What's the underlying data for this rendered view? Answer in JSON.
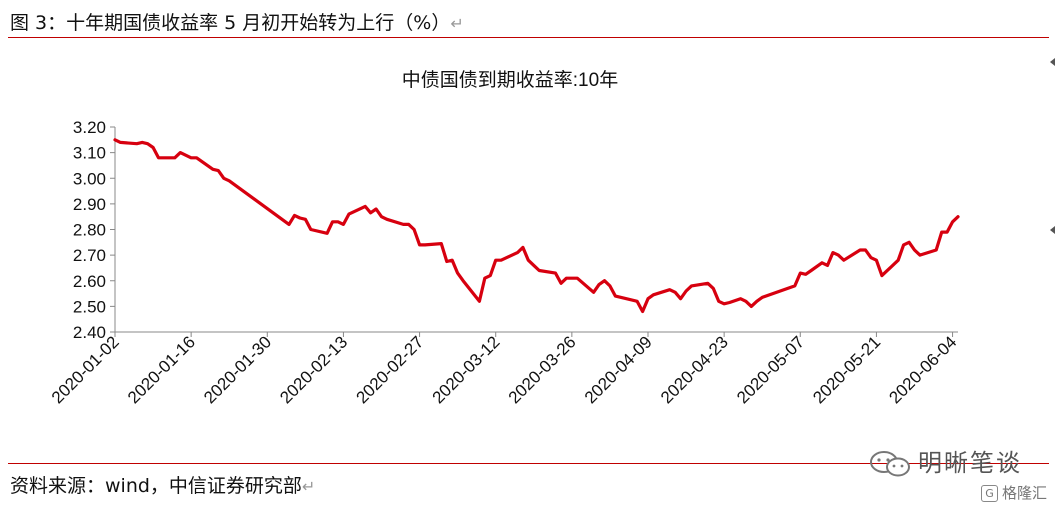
{
  "figure_title": "图 3：十年期国债收益率 5 月初开始转为上行（%）",
  "source": "资料来源：wind，中信证券研究部",
  "watermark": "明晰笔谈",
  "brand": "格隆汇",
  "colors": {
    "series": "#d7000f",
    "rule": "#c00000",
    "axis": "#888888"
  },
  "chart_data": {
    "type": "line",
    "title": "中债国债到期收益率:10年",
    "xlabel": "",
    "ylabel": "",
    "ylim": [
      2.4,
      3.2
    ],
    "yticks": [
      "2.40",
      "2.50",
      "2.60",
      "2.70",
      "2.80",
      "2.90",
      "3.00",
      "3.10",
      "3.20"
    ],
    "xlim": [
      "2020-01-02",
      "2020-06-05"
    ],
    "xticks": [
      "2020-01-02",
      "2020-01-16",
      "2020-01-30",
      "2020-02-13",
      "2020-02-27",
      "2020-03-12",
      "2020-03-26",
      "2020-04-09",
      "2020-04-23",
      "2020-05-07",
      "2020-05-21",
      "2020-06-04"
    ],
    "grid": false,
    "legend": "none",
    "series": [
      {
        "x": [
          "2020-01-02",
          "2020-01-03",
          "2020-01-06",
          "2020-01-07",
          "2020-01-08",
          "2020-01-09",
          "2020-01-10",
          "2020-01-13",
          "2020-01-14",
          "2020-01-15",
          "2020-01-16",
          "2020-01-17",
          "2020-01-20",
          "2020-01-21",
          "2020-01-22",
          "2020-01-23",
          "2020-02-03",
          "2020-02-04",
          "2020-02-05",
          "2020-02-06",
          "2020-02-07",
          "2020-02-10",
          "2020-02-11",
          "2020-02-12",
          "2020-02-13",
          "2020-02-14",
          "2020-02-17",
          "2020-02-18",
          "2020-02-19",
          "2020-02-20",
          "2020-02-21",
          "2020-02-24",
          "2020-02-25",
          "2020-02-26",
          "2020-02-27",
          "2020-02-28",
          "2020-03-02",
          "2020-03-03",
          "2020-03-04",
          "2020-03-05",
          "2020-03-06",
          "2020-03-09",
          "2020-03-10",
          "2020-03-11",
          "2020-03-12",
          "2020-03-13",
          "2020-03-16",
          "2020-03-17",
          "2020-03-18",
          "2020-03-19",
          "2020-03-20",
          "2020-03-23",
          "2020-03-24",
          "2020-03-25",
          "2020-03-26",
          "2020-03-27",
          "2020-03-30",
          "2020-03-31",
          "2020-04-01",
          "2020-04-02",
          "2020-04-03",
          "2020-04-07",
          "2020-04-08",
          "2020-04-09",
          "2020-04-10",
          "2020-04-13",
          "2020-04-14",
          "2020-04-15",
          "2020-04-16",
          "2020-04-17",
          "2020-04-20",
          "2020-04-21",
          "2020-04-22",
          "2020-04-23",
          "2020-04-24",
          "2020-04-26",
          "2020-04-27",
          "2020-04-28",
          "2020-04-29",
          "2020-04-30",
          "2020-05-06",
          "2020-05-07",
          "2020-05-08",
          "2020-05-09",
          "2020-05-11",
          "2020-05-12",
          "2020-05-13",
          "2020-05-14",
          "2020-05-15",
          "2020-05-18",
          "2020-05-19",
          "2020-05-20",
          "2020-05-21",
          "2020-05-22",
          "2020-05-25",
          "2020-05-26",
          "2020-05-27",
          "2020-05-28",
          "2020-05-29",
          "2020-06-01",
          "2020-06-02",
          "2020-06-03",
          "2020-06-04",
          "2020-06-05"
        ],
        "values": [
          3.15,
          3.14,
          3.135,
          3.14,
          3.135,
          3.12,
          3.08,
          3.08,
          3.1,
          3.09,
          3.08,
          3.08,
          3.035,
          3.03,
          3.0,
          2.99,
          2.82,
          2.855,
          2.845,
          2.84,
          2.8,
          2.785,
          2.83,
          2.83,
          2.82,
          2.86,
          2.89,
          2.865,
          2.88,
          2.85,
          2.84,
          2.82,
          2.82,
          2.8,
          2.74,
          2.74,
          2.745,
          2.675,
          2.68,
          2.63,
          2.6,
          2.52,
          2.61,
          2.62,
          2.68,
          2.68,
          2.71,
          2.73,
          2.68,
          2.66,
          2.64,
          2.63,
          2.59,
          2.61,
          2.61,
          2.61,
          2.555,
          2.585,
          2.6,
          2.58,
          2.54,
          2.52,
          2.48,
          2.53,
          2.545,
          2.565,
          2.555,
          2.53,
          2.56,
          2.58,
          2.59,
          2.57,
          2.52,
          2.51,
          2.515,
          2.53,
          2.52,
          2.5,
          2.52,
          2.535,
          2.58,
          2.63,
          2.625,
          2.64,
          2.67,
          2.66,
          2.71,
          2.7,
          2.68,
          2.72,
          2.72,
          2.69,
          2.68,
          2.62,
          2.68,
          2.74,
          2.75,
          2.72,
          2.7,
          2.72,
          2.79,
          2.79,
          2.83,
          2.85
        ]
      }
    ]
  }
}
